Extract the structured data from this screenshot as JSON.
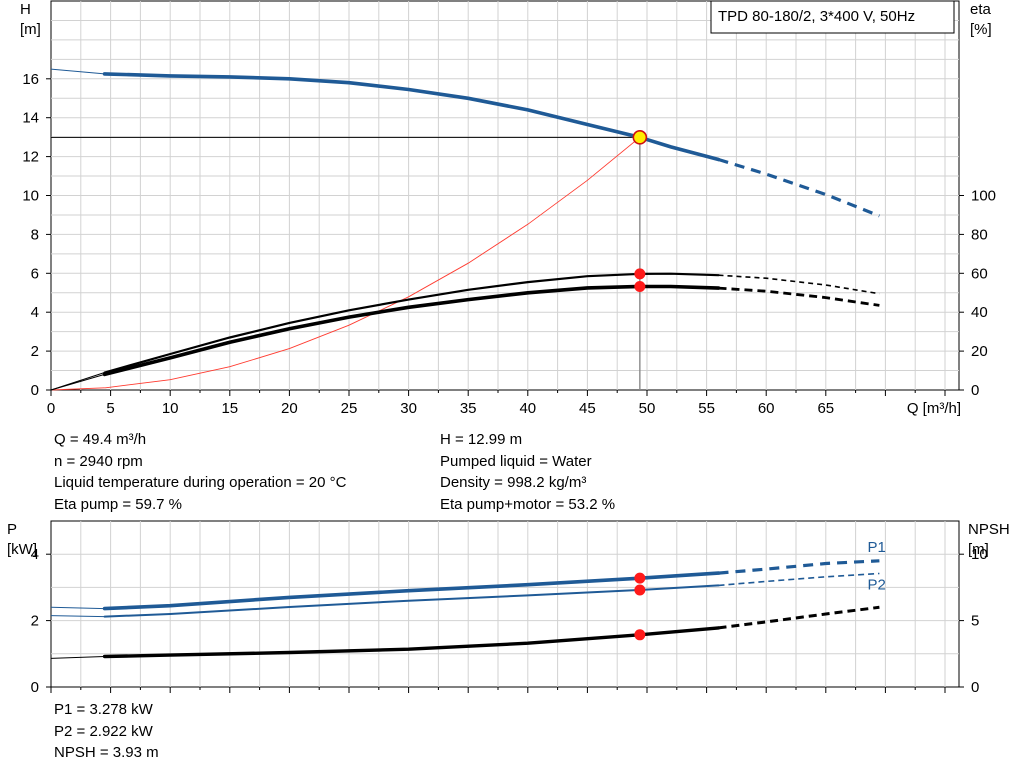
{
  "chart_data": [
    {
      "type": "line",
      "title": "TPD 80-180/2, 3*400 V, 50Hz",
      "x_axis": {
        "label": "Q [m³/h]",
        "range": [
          0,
          75
        ],
        "ticks": [
          0,
          5,
          10,
          15,
          20,
          25,
          30,
          35,
          40,
          45,
          50,
          55,
          60,
          65
        ]
      },
      "y_left": {
        "label_line1": "H",
        "label_line2": "[m]",
        "range": [
          0,
          20
        ],
        "ticks": [
          0,
          2,
          4,
          6,
          8,
          10,
          12,
          14,
          16
        ]
      },
      "y_right": {
        "label_line1": "eta",
        "label_line2": "[%]",
        "range": [
          0,
          200
        ],
        "ticks": [
          0,
          20,
          40,
          60,
          80,
          100
        ]
      },
      "grid": true,
      "series": [
        {
          "key": "H",
          "axis": "left",
          "color": "#1f5a96",
          "x": [
            0,
            4.5,
            10,
            15,
            20,
            25,
            30,
            35,
            40,
            45,
            49.4,
            52,
            56,
            60,
            65,
            69.5
          ],
          "y": [
            16.5,
            16.25,
            16.15,
            16.1,
            16.0,
            15.8,
            15.45,
            15.0,
            14.4,
            13.65,
            12.99,
            12.5,
            11.85,
            11.1,
            10.05,
            8.95
          ],
          "solid_from": 4.5,
          "solid_to": 56
        },
        {
          "key": "eta_pump",
          "axis": "right",
          "color": "#000000",
          "x": [
            0,
            4.5,
            10,
            15,
            20,
            25,
            30,
            35,
            40,
            45,
            49.4,
            52,
            56,
            60,
            65,
            69.5
          ],
          "y": [
            0,
            9,
            18.5,
            27,
            34.5,
            41,
            46.5,
            51.5,
            55.5,
            58.5,
            59.7,
            59.8,
            59,
            57.5,
            54,
            49.5
          ],
          "solid_from": 4.5,
          "solid_to": 56
        },
        {
          "key": "eta_pump_motor",
          "axis": "right",
          "color": "#000000",
          "x": [
            0,
            4.5,
            10,
            15,
            20,
            25,
            30,
            35,
            40,
            45,
            49.4,
            52,
            56,
            60,
            65,
            69.5
          ],
          "y": [
            0,
            8,
            16.5,
            24.5,
            31.5,
            37.5,
            42.5,
            46.5,
            50,
            52.5,
            53.2,
            53.2,
            52.4,
            50.8,
            47.5,
            43.5
          ],
          "solid_from": 4.5,
          "solid_to": 56
        },
        {
          "key": "system_curve",
          "axis": "left",
          "color": "#ff3b30",
          "x": [
            4.5,
            10,
            15,
            20,
            25,
            30,
            35,
            40,
            45,
            49.4
          ],
          "y": [
            0.11,
            0.53,
            1.2,
            2.13,
            3.33,
            4.79,
            6.52,
            8.52,
            10.78,
            12.99
          ]
        }
      ],
      "duty_point": {
        "Q": 49.4,
        "H": 12.99,
        "eta_pump": 59.7,
        "eta_pump_motor": 53.2
      }
    },
    {
      "type": "line",
      "x_axis": {
        "range": [
          0,
          75
        ],
        "ticks": [
          0,
          5,
          10,
          15,
          20,
          25,
          30,
          35,
          40,
          45,
          50,
          55,
          60,
          65
        ]
      },
      "y_left": {
        "label_line1": "P",
        "label_line2": "[kW]",
        "range": [
          0,
          5
        ],
        "ticks": [
          0,
          2,
          4
        ]
      },
      "y_right": {
        "label_line1": "NPSH",
        "label_line2": "[m]",
        "range": [
          0,
          12.5
        ],
        "ticks": [
          0,
          5,
          10
        ]
      },
      "grid": true,
      "series": [
        {
          "key": "P1",
          "name": "P1",
          "axis": "left",
          "color": "#1f5a96",
          "x": [
            0,
            4.5,
            10,
            20,
            30,
            40,
            49.4,
            56,
            60,
            65,
            69.5
          ],
          "y": [
            2.4,
            2.36,
            2.45,
            2.7,
            2.9,
            3.08,
            3.278,
            3.43,
            3.55,
            3.72,
            3.8
          ],
          "solid_from": 4.5,
          "solid_to": 56
        },
        {
          "key": "P2",
          "name": "P2",
          "axis": "left",
          "color": "#1f5a96",
          "x": [
            0,
            4.5,
            10,
            20,
            30,
            40,
            49.4,
            56,
            60,
            65,
            69.5
          ],
          "y": [
            2.15,
            2.12,
            2.2,
            2.41,
            2.6,
            2.76,
            2.922,
            3.06,
            3.18,
            3.32,
            3.42
          ],
          "solid_from": 4.5,
          "solid_to": 56
        },
        {
          "key": "NPSH",
          "axis": "right",
          "color": "#000000",
          "x": [
            0,
            4.5,
            10,
            20,
            30,
            40,
            49.4,
            56,
            60,
            65,
            69.5
          ],
          "y": [
            2.15,
            2.3,
            2.4,
            2.6,
            2.85,
            3.3,
            3.93,
            4.45,
            4.9,
            5.5,
            6.0
          ],
          "solid_from": 4.5,
          "solid_to": 56
        }
      ],
      "duty_point": {
        "Q": 49.4,
        "P1": 3.278,
        "P2": 2.922,
        "NPSH": 3.93
      }
    }
  ],
  "info_block_1": {
    "left": [
      "Q = 49.4 m³/h",
      "n = 2940 rpm",
      "Liquid temperature during operation = 20 °C",
      "Eta pump = 59.7 %"
    ],
    "right": [
      "H = 12.99 m",
      "Pumped liquid = Water",
      "Density = 998.2 kg/m³",
      "Eta pump+motor = 53.2 %"
    ]
  },
  "info_block_2": [
    "P1 = 3.278 kW",
    "P2 = 2.922 kW",
    "NPSH = 3.93 m"
  ]
}
